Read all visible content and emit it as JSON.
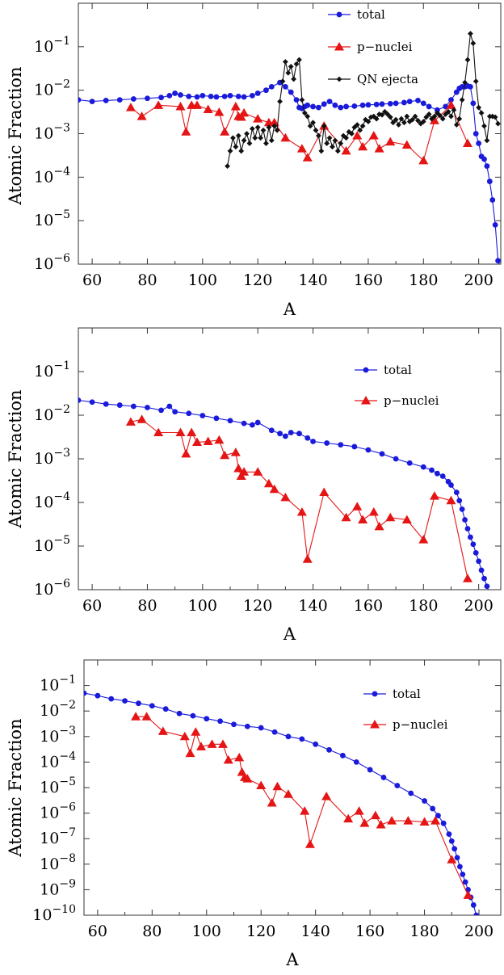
{
  "chart_data": [
    {
      "type": "line",
      "xlabel": "A",
      "ylabel": "Atomic Fraction",
      "scale_y": "log",
      "xlim": [
        55,
        208
      ],
      "ylim": [
        1e-06,
        1
      ],
      "x_ticks": [
        60,
        80,
        100,
        120,
        140,
        160,
        180,
        200
      ],
      "y_ticks": [
        {
          "value": 1e-06,
          "base": "10",
          "exp": "−6"
        },
        {
          "value": 1e-05,
          "base": "10",
          "exp": "−5"
        },
        {
          "value": 0.0001,
          "base": "10",
          "exp": "−4"
        },
        {
          "value": 0.001,
          "base": "10",
          "exp": "−3"
        },
        {
          "value": 0.01,
          "base": "10",
          "exp": "−2"
        },
        {
          "value": 0.1,
          "base": "10",
          "exp": "−1"
        }
      ],
      "grid": false,
      "legend_position": "top-right",
      "series": [
        {
          "name": "total",
          "color": "#1a1adb",
          "marker": "circle",
          "x": [
            55,
            60,
            65,
            70,
            75,
            80,
            85,
            88,
            90,
            92,
            95,
            98,
            100,
            103,
            105,
            108,
            110,
            113,
            115,
            118,
            120,
            123,
            125,
            128,
            130,
            132,
            134,
            135,
            136,
            137,
            138,
            140,
            142,
            144,
            146,
            148,
            150,
            152,
            155,
            158,
            160,
            163,
            165,
            168,
            170,
            173,
            175,
            178,
            180,
            182,
            185,
            188,
            190,
            192,
            193,
            194,
            195,
            196,
            197,
            198,
            199,
            200,
            201,
            202,
            203,
            204,
            205,
            206,
            207,
            208
          ],
          "y": [
            0.006,
            0.0055,
            0.0058,
            0.006,
            0.0063,
            0.0065,
            0.0068,
            0.0075,
            0.0085,
            0.0078,
            0.0072,
            0.007,
            0.0075,
            0.0072,
            0.007,
            0.0072,
            0.0075,
            0.0072,
            0.007,
            0.0075,
            0.0085,
            0.01,
            0.012,
            0.015,
            0.012,
            0.009,
            0.006,
            0.004,
            0.0038,
            0.0042,
            0.0045,
            0.0042,
            0.004,
            0.0048,
            0.0055,
            0.0045,
            0.004,
            0.0042,
            0.0043,
            0.0045,
            0.0046,
            0.0047,
            0.0048,
            0.0049,
            0.005,
            0.0052,
            0.0055,
            0.0058,
            0.005,
            0.0042,
            0.0035,
            0.0042,
            0.006,
            0.009,
            0.011,
            0.012,
            0.012,
            0.0125,
            0.012,
            0.005,
            0.001,
            0.0006,
            0.0003,
            0.00026,
            0.00018,
            8e-05,
            3e-05,
            8e-06,
            1.2e-06,
            8e-07
          ]
        },
        {
          "name": "p−nuclei",
          "color": "#e51515",
          "marker": "triangle",
          "x": [
            74,
            78,
            84,
            92,
            94,
            96,
            98,
            102,
            106,
            108,
            112,
            113,
            114,
            115,
            120,
            124,
            126,
            130,
            136,
            138,
            144,
            152,
            156,
            158,
            162,
            164,
            168,
            174,
            180,
            184,
            190,
            196
          ],
          "y": [
            0.004,
            0.0025,
            0.0045,
            0.0042,
            0.0011,
            0.0045,
            0.0045,
            0.0036,
            0.0031,
            0.0011,
            0.0042,
            0.0025,
            0.0024,
            0.003,
            0.0022,
            0.0018,
            0.0018,
            0.0008,
            0.00045,
            0.00028,
            0.0015,
            0.0004,
            0.0009,
            0.0005,
            0.0009,
            0.00045,
            0.00065,
            0.00055,
            0.00024,
            0.002,
            0.0045,
            0.0006
          ]
        },
        {
          "name": "QN ejecta",
          "color": "#111111",
          "marker": "diamond",
          "x": [
            109,
            110,
            111,
            112,
            113,
            114,
            115,
            116,
            117,
            118,
            119,
            120,
            121,
            122,
            123,
            124,
            125,
            126,
            127,
            128,
            129,
            130,
            131,
            132,
            133,
            134,
            135,
            136,
            137,
            138,
            139,
            140,
            141,
            142,
            143,
            144,
            145,
            146,
            147,
            148,
            149,
            150,
            151,
            152,
            153,
            154,
            155,
            156,
            157,
            158,
            159,
            160,
            161,
            162,
            163,
            164,
            165,
            166,
            167,
            168,
            169,
            170,
            171,
            172,
            173,
            174,
            175,
            176,
            177,
            178,
            179,
            180,
            181,
            182,
            183,
            184,
            185,
            186,
            187,
            188,
            189,
            190,
            191,
            192,
            193,
            194,
            195,
            196,
            197,
            198,
            199,
            200,
            201,
            202,
            203,
            204,
            205,
            206,
            207
          ],
          "y": [
            0.00018,
            0.0004,
            0.0008,
            0.0005,
            0.0009,
            0.0004,
            0.0007,
            0.001,
            0.0006,
            0.0013,
            0.0008,
            0.0014,
            0.0008,
            0.0012,
            0.0006,
            0.0014,
            0.0007,
            0.0015,
            0.0012,
            0.0055,
            0.016,
            0.045,
            0.025,
            0.035,
            0.018,
            0.04,
            0.05,
            0.006,
            0.003,
            0.0025,
            0.0015,
            0.0018,
            0.0012,
            0.0009,
            0.0004,
            0.0015,
            0.0006,
            0.0008,
            0.0005,
            0.0007,
            0.0004,
            0.0006,
            0.0009,
            0.0008,
            0.0011,
            0.001,
            0.0014,
            0.0016,
            0.0012,
            0.0015,
            0.0021,
            0.0019,
            0.0024,
            0.0025,
            0.0022,
            0.0028,
            0.0027,
            0.0032,
            0.0028,
            0.0024,
            0.0018,
            0.0021,
            0.0016,
            0.0022,
            0.0018,
            0.0025,
            0.0019,
            0.0021,
            0.0025,
            0.002,
            0.0017,
            0.0019,
            0.0024,
            0.0028,
            0.0022,
            0.0025,
            0.003,
            0.0026,
            0.0022,
            0.0028,
            0.0032,
            0.0025,
            0.0035,
            0.0016,
            0.0022,
            0.006,
            0.015,
            0.05,
            0.2,
            0.12,
            0.016,
            0.004,
            0.003,
            0.0015,
            0.0007,
            0.0025,
            0.0025,
            0.0024,
            0.0017
          ]
        }
      ]
    },
    {
      "type": "line",
      "xlabel": "A",
      "ylabel": "Atomic Fraction",
      "scale_y": "log",
      "xlim": [
        55,
        208
      ],
      "ylim": [
        1e-06,
        1
      ],
      "x_ticks": [
        60,
        80,
        100,
        120,
        140,
        160,
        180,
        200
      ],
      "y_ticks": [
        {
          "value": 1e-06,
          "base": "10",
          "exp": "−6"
        },
        {
          "value": 1e-05,
          "base": "10",
          "exp": "−5"
        },
        {
          "value": 0.0001,
          "base": "10",
          "exp": "−4"
        },
        {
          "value": 0.001,
          "base": "10",
          "exp": "−3"
        },
        {
          "value": 0.01,
          "base": "10",
          "exp": "−2"
        },
        {
          "value": 0.1,
          "base": "10",
          "exp": "−1"
        }
      ],
      "grid": false,
      "legend_position": "top-right",
      "series": [
        {
          "name": "total",
          "color": "#1a1adb",
          "marker": "circle",
          "x": [
            55,
            60,
            65,
            70,
            75,
            80,
            85,
            88,
            90,
            95,
            100,
            105,
            110,
            115,
            118,
            120,
            125,
            128,
            130,
            132,
            135,
            138,
            140,
            145,
            150,
            155,
            160,
            165,
            170,
            175,
            180,
            183,
            185,
            187,
            189,
            190,
            192,
            193,
            194,
            195,
            196,
            197,
            198,
            199,
            200,
            201,
            202,
            203,
            204
          ],
          "y": [
            0.022,
            0.02,
            0.018,
            0.017,
            0.016,
            0.015,
            0.013,
            0.016,
            0.012,
            0.011,
            0.0098,
            0.0085,
            0.0075,
            0.0065,
            0.006,
            0.0068,
            0.0045,
            0.0038,
            0.0033,
            0.004,
            0.0038,
            0.003,
            0.0025,
            0.0023,
            0.0021,
            0.0019,
            0.0016,
            0.0013,
            0.001,
            0.0008,
            0.00065,
            0.00055,
            0.00046,
            0.0004,
            0.0003,
            0.00025,
            0.00017,
            0.00011,
            7e-05,
            4e-05,
            2.5e-05,
            1.6e-05,
            1.1e-05,
            7e-06,
            4.5e-06,
            2.8e-06,
            1.8e-06,
            1.2e-06,
            8e-07
          ]
        },
        {
          "name": "p−nuclei",
          "color": "#e51515",
          "marker": "triangle",
          "x": [
            74,
            78,
            84,
            92,
            94,
            96,
            98,
            102,
            106,
            108,
            112,
            113,
            114,
            115,
            120,
            124,
            126,
            130,
            136,
            138,
            144,
            152,
            156,
            158,
            162,
            164,
            168,
            174,
            180,
            184,
            190,
            196
          ],
          "y": [
            0.007,
            0.008,
            0.004,
            0.004,
            0.0013,
            0.004,
            0.0024,
            0.0025,
            0.0027,
            0.0012,
            0.0014,
            0.0006,
            0.0004,
            0.0005,
            0.0005,
            0.00027,
            0.0002,
            0.00013,
            6e-05,
            5e-06,
            0.00017,
            4.5e-05,
            8e-05,
            4e-05,
            6e-05,
            2.8e-05,
            4.5e-05,
            4e-05,
            1.4e-05,
            0.00014,
            0.00011,
            1.8e-06
          ]
        }
      ]
    },
    {
      "type": "line",
      "xlabel": "A",
      "ylabel": "Atomic Fraction",
      "scale_y": "log",
      "xlim": [
        55,
        208
      ],
      "ylim": [
        1e-10,
        1
      ],
      "x_ticks": [
        60,
        80,
        100,
        120,
        140,
        160,
        180,
        200
      ],
      "y_ticks": [
        {
          "value": 1e-10,
          "base": "10",
          "exp": "−10"
        },
        {
          "value": 1e-09,
          "base": "10",
          "exp": "−9"
        },
        {
          "value": 1e-08,
          "base": "10",
          "exp": "−8"
        },
        {
          "value": 1e-07,
          "base": "10",
          "exp": "−7"
        },
        {
          "value": 1e-06,
          "base": "10",
          "exp": "−6"
        },
        {
          "value": 1e-05,
          "base": "10",
          "exp": "−5"
        },
        {
          "value": 0.0001,
          "base": "10",
          "exp": "−4"
        },
        {
          "value": 0.001,
          "base": "10",
          "exp": "−3"
        },
        {
          "value": 0.01,
          "base": "10",
          "exp": "−2"
        },
        {
          "value": 0.1,
          "base": "10",
          "exp": "−1"
        }
      ],
      "grid": false,
      "legend_position": "right",
      "series": [
        {
          "name": "total",
          "color": "#1a1adb",
          "marker": "circle",
          "x": [
            55,
            60,
            65,
            70,
            75,
            80,
            85,
            90,
            95,
            100,
            105,
            110,
            115,
            120,
            125,
            130,
            135,
            140,
            145,
            150,
            155,
            160,
            165,
            170,
            175,
            180,
            183,
            185,
            187,
            189,
            190,
            191,
            192,
            193,
            194,
            195,
            196,
            197,
            198,
            199,
            200
          ],
          "y": [
            0.05,
            0.04,
            0.03,
            0.025,
            0.02,
            0.016,
            0.012,
            0.008,
            0.0065,
            0.005,
            0.004,
            0.003,
            0.0025,
            0.0022,
            0.0015,
            0.001,
            0.0008,
            0.0005,
            0.0003,
            0.00018,
            0.0001,
            5e-05,
            2.5e-05,
            1.2e-05,
            6e-06,
            3e-06,
            1.5e-06,
            8e-07,
            4e-07,
            1.5e-07,
            8e-08,
            4e-08,
            1.8e-08,
            8e-09,
            4e-09,
            2e-09,
            1e-09,
            5e-10,
            2.5e-10,
            1e-10,
            5e-11
          ]
        },
        {
          "name": "p−nuclei",
          "color": "#e51515",
          "marker": "triangle",
          "x": [
            74,
            78,
            84,
            92,
            94,
            96,
            98,
            102,
            106,
            108,
            112,
            113,
            114,
            115,
            120,
            124,
            126,
            130,
            136,
            138,
            144,
            152,
            156,
            158,
            162,
            164,
            168,
            174,
            180,
            184,
            190,
            196
          ],
          "y": [
            0.006,
            0.006,
            0.0016,
            0.001,
            0.00022,
            0.0015,
            0.0004,
            0.0005,
            0.0005,
            0.00012,
            0.00015,
            4e-05,
            2.5e-05,
            2.2e-05,
            1.2e-05,
            2.5e-06,
            1.1e-05,
            5.5e-06,
            1.2e-06,
            6e-08,
            4.5e-06,
            6e-07,
            1.2e-06,
            4e-07,
            8e-07,
            3.5e-07,
            5e-07,
            5e-07,
            4.5e-07,
            5e-07,
            1.5e-08,
            6e-10
          ]
        }
      ]
    }
  ]
}
